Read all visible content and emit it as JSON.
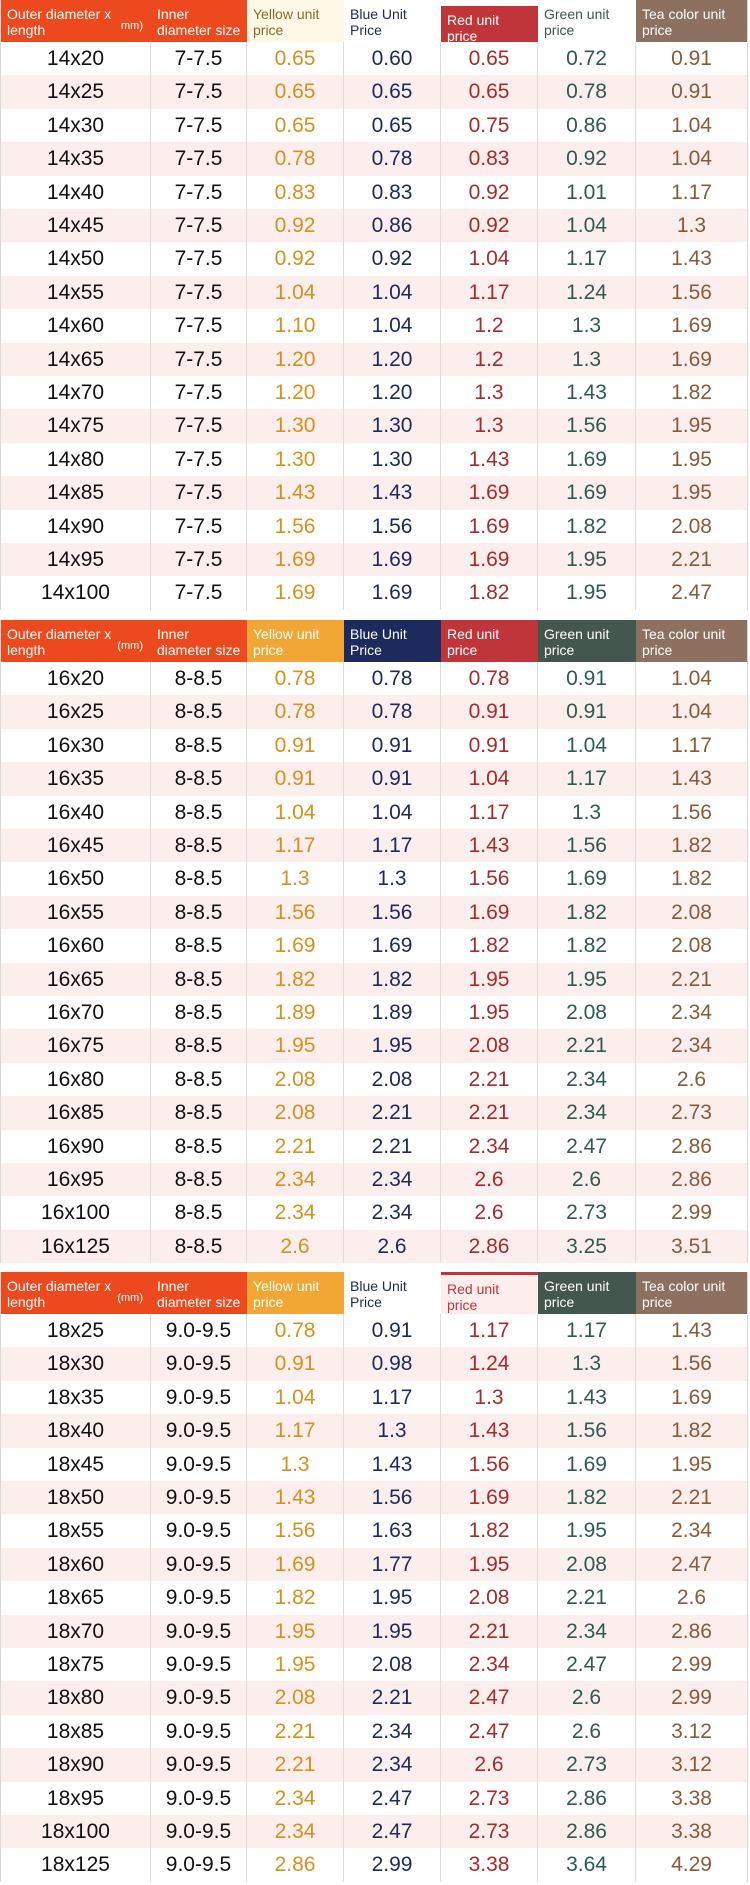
{
  "colors": {
    "orange_header": "#ec4a1e",
    "yellow": "#f2a633",
    "blue": "#1c2a5e",
    "red": "#c0353a",
    "green": "#43574e",
    "tea": "#8d7060",
    "row_alt": "#fdeeee"
  },
  "tables": [
    {
      "headers": [
        {
          "label": "Outer diameter x length",
          "unit": "mm)"
        },
        {
          "label": "Inner diameter size",
          "unit": ""
        },
        {
          "label": "Yellow unit price",
          "unit": ""
        },
        {
          "label": "Blue Unit Price",
          "unit": ""
        },
        {
          "label": "Red unit price",
          "unit": ""
        },
        {
          "label": "Green unit price",
          "unit": ""
        },
        {
          "label": "Tea color unit price",
          "unit": ""
        }
      ],
      "rows": [
        [
          "14x20",
          "7-7.5",
          "0.65",
          "0.60",
          "0.65",
          "0.72",
          "0.91"
        ],
        [
          "14x25",
          "7-7.5",
          "0.65",
          "0.65",
          "0.65",
          "0.78",
          "0.91"
        ],
        [
          "14x30",
          "7-7.5",
          "0.65",
          "0.65",
          "0.75",
          "0.86",
          "1.04"
        ],
        [
          "14x35",
          "7-7.5",
          "0.78",
          "0.78",
          "0.83",
          "0.92",
          "1.04"
        ],
        [
          "14x40",
          "7-7.5",
          "0.83",
          "0.83",
          "0.92",
          "1.01",
          "1.17"
        ],
        [
          "14x45",
          "7-7.5",
          "0.92",
          "0.86",
          "0.92",
          "1.04",
          "1.3"
        ],
        [
          "14x50",
          "7-7.5",
          "0.92",
          "0.92",
          "1.04",
          "1.17",
          "1.43"
        ],
        [
          "14x55",
          "7-7.5",
          "1.04",
          "1.04",
          "1.17",
          "1.24",
          "1.56"
        ],
        [
          "14x60",
          "7-7.5",
          "1.10",
          "1.04",
          "1.2",
          "1.3",
          "1.69"
        ],
        [
          "14x65",
          "7-7.5",
          "1.20",
          "1.20",
          "1.2",
          "1.3",
          "1.69"
        ],
        [
          "14x70",
          "7-7.5",
          "1.20",
          "1.20",
          "1.3",
          "1.43",
          "1.82"
        ],
        [
          "14x75",
          "7-7.5",
          "1.30",
          "1.30",
          "1.3",
          "1.56",
          "1.95"
        ],
        [
          "14x80",
          "7-7.5",
          "1.30",
          "1.30",
          "1.43",
          "1.69",
          "1.95"
        ],
        [
          "14x85",
          "7-7.5",
          "1.43",
          "1.43",
          "1.69",
          "1.69",
          "1.95"
        ],
        [
          "14x90",
          "7-7.5",
          "1.56",
          "1.56",
          "1.69",
          "1.82",
          "2.08"
        ],
        [
          "14x95",
          "7-7.5",
          "1.69",
          "1.69",
          "1.69",
          "1.95",
          "2.21"
        ],
        [
          "14x100",
          "7-7.5",
          "1.69",
          "1.69",
          "1.82",
          "1.95",
          "2.47"
        ]
      ]
    },
    {
      "headers": [
        {
          "label": "Outer diameter x length",
          "unit": "(mm)"
        },
        {
          "label": "Inner diameter size",
          "unit": ""
        },
        {
          "label": "Yellow unit price",
          "unit": ""
        },
        {
          "label": "Blue Unit Price",
          "unit": ""
        },
        {
          "label": "Red unit price",
          "unit": ""
        },
        {
          "label": "Green unit price",
          "unit": ""
        },
        {
          "label": "Tea color unit price",
          "unit": ""
        }
      ],
      "rows": [
        [
          "16x20",
          "8-8.5",
          "0.78",
          "0.78",
          "0.78",
          "0.91",
          "1.04"
        ],
        [
          "16x25",
          "8-8.5",
          "0.78",
          "0.78",
          "0.91",
          "0.91",
          "1.04"
        ],
        [
          "16x30",
          "8-8.5",
          "0.91",
          "0.91",
          "0.91",
          "1.04",
          "1.17"
        ],
        [
          "16x35",
          "8-8.5",
          "0.91",
          "0.91",
          "1.04",
          "1.17",
          "1.43"
        ],
        [
          "16x40",
          "8-8.5",
          "1.04",
          "1.04",
          "1.17",
          "1.3",
          "1.56"
        ],
        [
          "16x45",
          "8-8.5",
          "1.17",
          "1.17",
          "1.43",
          "1.56",
          "1.82"
        ],
        [
          "16x50",
          "8-8.5",
          "1.3",
          "1.3",
          "1.56",
          "1.69",
          "1.82"
        ],
        [
          "16x55",
          "8-8.5",
          "1.56",
          "1.56",
          "1.69",
          "1.82",
          "2.08"
        ],
        [
          "16x60",
          "8-8.5",
          "1.69",
          "1.69",
          "1.82",
          "1.82",
          "2.08"
        ],
        [
          "16x65",
          "8-8.5",
          "1.82",
          "1.82",
          "1.95",
          "1.95",
          "2.21"
        ],
        [
          "16x70",
          "8-8.5",
          "1.89",
          "1.89",
          "1.95",
          "2.08",
          "2.34"
        ],
        [
          "16x75",
          "8-8.5",
          "1.95",
          "1.95",
          "2.08",
          "2.21",
          "2.34"
        ],
        [
          "16x80",
          "8-8.5",
          "2.08",
          "2.08",
          "2.21",
          "2.34",
          "2.6"
        ],
        [
          "16x85",
          "8-8.5",
          "2.08",
          "2.21",
          "2.21",
          "2.34",
          "2.73"
        ],
        [
          "16x90",
          "8-8.5",
          "2.21",
          "2.21",
          "2.34",
          "2.47",
          "2.86"
        ],
        [
          "16x95",
          "8-8.5",
          "2.34",
          "2.34",
          "2.6",
          "2.6",
          "2.86"
        ],
        [
          "16x100",
          "8-8.5",
          "2.34",
          "2.34",
          "2.6",
          "2.73",
          "2.99"
        ],
        [
          "16x125",
          "8-8.5",
          "2.6",
          "2.6",
          "2.86",
          "3.25",
          "3.51"
        ]
      ]
    },
    {
      "headers": [
        {
          "label": "Outer diameter x length",
          "unit": "(mm)"
        },
        {
          "label": "Inner diameter size",
          "unit": ""
        },
        {
          "label": "Yellow unit price",
          "unit": ""
        },
        {
          "label": "Blue Unit Price",
          "unit": ""
        },
        {
          "label": "Red unit price",
          "unit": ""
        },
        {
          "label": "Green unit price",
          "unit": ""
        },
        {
          "label": "Tea color unit price",
          "unit": ""
        }
      ],
      "rows": [
        [
          "18x25",
          "9.0-9.5",
          "0.78",
          "0.91",
          "1.17",
          "1.17",
          "1.43"
        ],
        [
          "18x30",
          "9.0-9.5",
          "0.91",
          "0.98",
          "1.24",
          "1.3",
          "1.56"
        ],
        [
          "18x35",
          "9.0-9.5",
          "1.04",
          "1.17",
          "1.3",
          "1.43",
          "1.69"
        ],
        [
          "18x40",
          "9.0-9.5",
          "1.17",
          "1.3",
          "1.43",
          "1.56",
          "1.82"
        ],
        [
          "18x45",
          "9.0-9.5",
          "1.3",
          "1.43",
          "1.56",
          "1.69",
          "1.95"
        ],
        [
          "18x50",
          "9.0-9.5",
          "1.43",
          "1.56",
          "1.69",
          "1.82",
          "2.21"
        ],
        [
          "18x55",
          "9.0-9.5",
          "1.56",
          "1.63",
          "1.82",
          "1.95",
          "2.34"
        ],
        [
          "18x60",
          "9.0-9.5",
          "1.69",
          "1.77",
          "1.95",
          "2.08",
          "2.47"
        ],
        [
          "18x65",
          "9.0-9.5",
          "1.82",
          "1.95",
          "2.08",
          "2.21",
          "2.6"
        ],
        [
          "18x70",
          "9.0-9.5",
          "1.95",
          "1.95",
          "2.21",
          "2.34",
          "2.86"
        ],
        [
          "18x75",
          "9.0-9.5",
          "1.95",
          "2.08",
          "2.34",
          "2.47",
          "2.99"
        ],
        [
          "18x80",
          "9.0-9.5",
          "2.08",
          "2.21",
          "2.47",
          "2.6",
          "2.99"
        ],
        [
          "18x85",
          "9.0-9.5",
          "2.21",
          "2.34",
          "2.47",
          "2.6",
          "3.12"
        ],
        [
          "18x90",
          "9.0-9.5",
          "2.21",
          "2.34",
          "2.6",
          "2.73",
          "3.12"
        ],
        [
          "18x95",
          "9.0-9.5",
          "2.34",
          "2.47",
          "2.73",
          "2.86",
          "3.38"
        ],
        [
          "18x100",
          "9.0-9.5",
          "2.34",
          "2.47",
          "2.73",
          "2.86",
          "3.38"
        ],
        [
          "18x125",
          "9.0-9.5",
          "2.86",
          "2.99",
          "3.38",
          "3.64",
          "4.29"
        ]
      ]
    }
  ]
}
